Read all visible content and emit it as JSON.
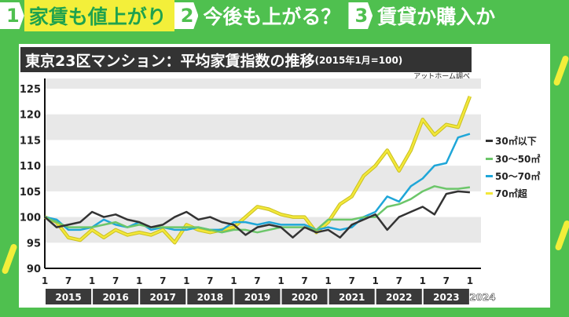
{
  "tabs": [
    {
      "number": "1",
      "label": "家賃も値上がり",
      "active": true
    },
    {
      "number": "2",
      "label": "今後も上がる？",
      "active": false
    },
    {
      "number": "3",
      "label": "賃貸か購入か",
      "active": false
    }
  ],
  "colors": {
    "background": "#4fc04f",
    "accent": "#f3ef3a"
  },
  "chart_data": {
    "type": "line",
    "title": "東京23区マンション：平均家賃指数の推移",
    "subtitle": "(2015年1月=100)",
    "source": "アットホーム調べ",
    "x_frequency": "quarterly, 2015-01 to 2024-01",
    "x_tick_labels": [
      "1",
      "7",
      "1",
      "7",
      "1",
      "7",
      "1",
      "7",
      "1",
      "7",
      "1",
      "7",
      "1",
      "7",
      "1",
      "7",
      "1",
      "7",
      "1"
    ],
    "year_labels": [
      "2015",
      "2016",
      "2017",
      "2018",
      "2019",
      "2020",
      "2021",
      "2022",
      "2023",
      "2024"
    ],
    "y_ticks": [
      90,
      95,
      100,
      105,
      110,
      115,
      120,
      125
    ],
    "ylim": [
      90,
      125
    ],
    "grid": "alternating bands",
    "legend": "right",
    "series": [
      {
        "name": "30㎡以下",
        "color": "#333333",
        "values": [
          100,
          98,
          98.5,
          99,
          101,
          100,
          100.5,
          99.5,
          99,
          98,
          98.5,
          100,
          101,
          99.5,
          100,
          99,
          98.5,
          96.5,
          98,
          98.5,
          98,
          96,
          98,
          97,
          97.5,
          96,
          98.5,
          99.5,
          100.5,
          97.5,
          100,
          101,
          102,
          100.5,
          104.5,
          105,
          104.8
        ]
      },
      {
        "name": "30～50㎡",
        "color": "#6cc66a",
        "values": [
          100,
          99,
          98,
          98,
          98,
          98.5,
          99,
          98,
          98.5,
          98,
          98,
          98,
          98,
          98,
          97.5,
          97,
          97.5,
          97.5,
          97,
          97.5,
          98,
          98,
          98,
          97.5,
          99.5,
          99.5,
          99.5,
          100,
          100,
          102,
          102.5,
          103.5,
          105,
          106,
          105.5,
          105.5,
          105.8
        ]
      },
      {
        "name": "50～70㎡",
        "color": "#1fa6d8",
        "values": [
          100,
          99.5,
          97.5,
          97.5,
          98,
          99.5,
          98.5,
          98,
          99,
          97.5,
          98,
          97.5,
          97.5,
          98,
          97.5,
          97.5,
          99,
          99,
          98.5,
          99,
          98.5,
          98.5,
          98.5,
          97.5,
          98,
          97.5,
          98,
          100,
          101,
          104,
          103,
          106,
          107.5,
          110,
          110.5,
          115.5,
          116.2
        ]
      },
      {
        "name": "70㎡超",
        "color": "#f3e83a",
        "values": [
          100,
          99,
          96,
          95.5,
          97.5,
          96,
          97.5,
          96.5,
          97,
          96.5,
          97.5,
          95,
          98.5,
          97.5,
          97,
          97.5,
          98,
          100,
          102,
          101.5,
          100.5,
          100,
          100,
          97,
          99,
          102.5,
          104,
          108,
          110,
          113,
          109,
          113,
          119,
          116,
          118,
          117.5,
          123.5
        ]
      }
    ]
  }
}
